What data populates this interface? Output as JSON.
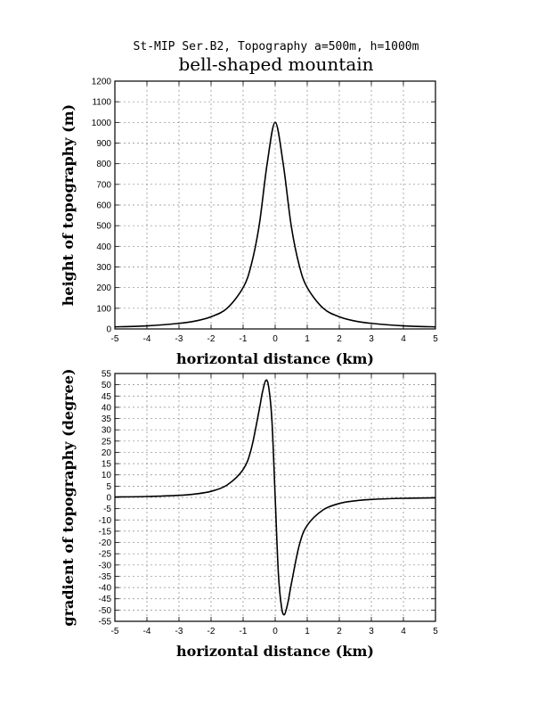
{
  "header": {
    "subtitle": "St-MIP Ser.B2, Topography a=500m, h=1000m",
    "title": "bell-shaped mountain"
  },
  "chart_data": [
    {
      "type": "line",
      "name": "height",
      "xlabel": "horizontal distance (km)",
      "ylabel": "height of topography (m)",
      "xlim": [
        -5,
        5
      ],
      "ylim": [
        0,
        1200
      ],
      "xticks": [
        -5,
        -4,
        -3,
        -2,
        -1,
        0,
        1,
        2,
        3,
        4,
        5
      ],
      "yticks": [
        0,
        100,
        200,
        300,
        400,
        500,
        600,
        700,
        800,
        900,
        1000,
        1100,
        1200
      ],
      "grid": true,
      "x": [
        -5,
        -4,
        -3,
        -2.5,
        -2,
        -1.5,
        -1,
        -0.75,
        -0.5,
        -0.25,
        0,
        0.25,
        0.5,
        0.75,
        1,
        1.5,
        2,
        2.5,
        3,
        4,
        5
      ],
      "y": [
        10,
        15,
        27,
        38,
        59,
        100,
        200,
        308,
        500,
        800,
        1000,
        800,
        500,
        308,
        200,
        100,
        59,
        38,
        27,
        15,
        10
      ]
    },
    {
      "type": "line",
      "name": "gradient",
      "xlabel": "horizontal distance (km)",
      "ylabel": "gradient of topography (degree)",
      "xlim": [
        -5,
        5
      ],
      "ylim": [
        -55,
        55
      ],
      "xticks": [
        -5,
        -4,
        -3,
        -2,
        -1,
        0,
        1,
        2,
        3,
        4,
        5
      ],
      "yticks": [
        -55,
        -50,
        -45,
        -40,
        -35,
        -30,
        -25,
        -20,
        -15,
        -10,
        -5,
        0,
        5,
        10,
        15,
        20,
        25,
        30,
        35,
        40,
        45,
        50,
        55
      ],
      "grid": true,
      "x": [
        -5,
        -4,
        -3,
        -2.5,
        -2,
        -1.5,
        -1,
        -0.75,
        -0.5,
        -0.4,
        -0.29,
        -0.2,
        -0.1,
        0,
        0.1,
        0.2,
        0.29,
        0.4,
        0.5,
        0.75,
        1,
        1.5,
        2,
        2.5,
        3,
        4,
        5
      ],
      "y": [
        0.2,
        0.4,
        0.9,
        1.5,
        2.7,
        5.5,
        12.4,
        21.3,
        38.7,
        46.5,
        52,
        48.8,
        33.8,
        0,
        -33.8,
        -48.8,
        -52,
        -46.5,
        -38.7,
        -21.3,
        -12.4,
        -5.5,
        -2.7,
        -1.5,
        -0.9,
        -0.4,
        -0.2
      ]
    }
  ]
}
